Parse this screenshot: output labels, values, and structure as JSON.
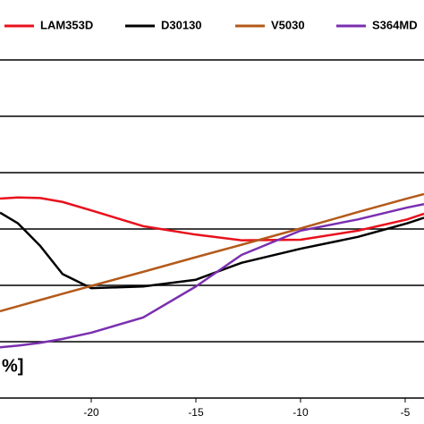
{
  "chart_data": {
    "type": "line",
    "y_label": "%]",
    "x": [
      -24.36,
      -23.5,
      -22.44,
      -21.37,
      -20,
      -17.52,
      -15,
      -12.82,
      -10,
      -7.26,
      -4.91,
      -4.1
    ],
    "series": [
      {
        "name": "LAM353D",
        "color": "#e8101c",
        "values": [
          3.54,
          3.56,
          3.55,
          3.48,
          3.33,
          3.05,
          2.9,
          2.8,
          2.81,
          2.97,
          3.17,
          3.27
        ]
      },
      {
        "name": "D30130",
        "color": "#000000",
        "values": [
          3.29,
          3.1,
          2.7,
          2.2,
          1.95,
          1.98,
          2.1,
          2.4,
          2.65,
          2.86,
          3.1,
          3.2
        ]
      },
      {
        "name": "V5030",
        "color": "#b35a1a",
        "values": [
          1.54,
          1.63,
          1.74,
          1.85,
          1.99,
          2.24,
          2.5,
          2.72,
          3.01,
          3.3,
          3.54,
          3.62
        ]
      },
      {
        "name": "S364MD",
        "color": "#7a2fb0",
        "values": [
          0.9,
          0.93,
          0.98,
          1.05,
          1.16,
          1.43,
          1.98,
          2.54,
          2.97,
          3.17,
          3.38,
          3.44
        ]
      }
    ],
    "xlim": [
      -24.36,
      -4.1
    ],
    "xticks": [
      -25,
      -20,
      -15,
      -10,
      -5
    ],
    "ylim": [
      0,
      6
    ],
    "yticks": [
      1,
      2,
      3,
      4,
      5,
      6
    ],
    "grid": true
  }
}
